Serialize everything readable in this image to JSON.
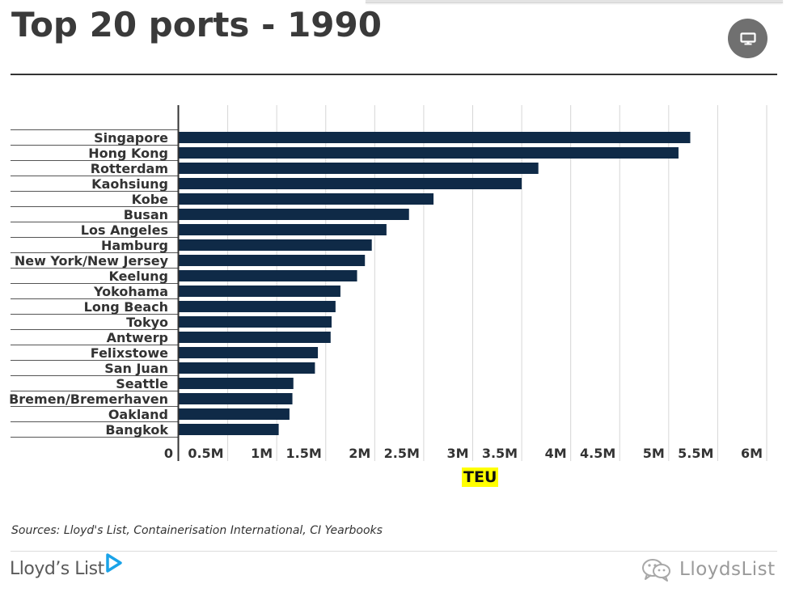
{
  "header": {
    "title": "Top 20 ports - 1990"
  },
  "present_button": {
    "icon": "presentation-icon"
  },
  "chart_data": {
    "type": "bar",
    "orientation": "horizontal",
    "title": "Top 20 ports - 1990",
    "xlabel": "TEU",
    "ylabel": "",
    "xlim": [
      0,
      6000000
    ],
    "grid": true,
    "bar_color": "#0f2a47",
    "x_ticks": [
      0,
      500000,
      1000000,
      1500000,
      2000000,
      2500000,
      3000000,
      3500000,
      4000000,
      4500000,
      5000000,
      5500000,
      6000000
    ],
    "x_tick_labels": [
      "0",
      "0.5M",
      "1M",
      "1.5M",
      "2M",
      "2.5M",
      "3M",
      "3.5M",
      "4M",
      "4.5M",
      "5M",
      "5.5M",
      "6M"
    ],
    "categories": [
      "Singapore",
      "Hong Kong",
      "Rotterdam",
      "Kaohsiung",
      "Kobe",
      "Busan",
      "Los Angeles",
      "Hamburg",
      "New York/New Jersey",
      "Keelung",
      "Yokohama",
      "Long Beach",
      "Tokyo",
      "Antwerp",
      "Felixstowe",
      "San Juan",
      "Seattle",
      "Bremen/Bremerhaven",
      "Oakland",
      "Bangkok"
    ],
    "values": [
      5220000,
      5100000,
      3670000,
      3500000,
      2600000,
      2350000,
      2120000,
      1970000,
      1900000,
      1820000,
      1650000,
      1600000,
      1560000,
      1550000,
      1420000,
      1390000,
      1170000,
      1160000,
      1130000,
      1020000
    ]
  },
  "source_note": "Sources: Lloyd's List, Containerisation International, CI Yearbooks",
  "footer": {
    "brand": "Lloyd’s List",
    "brand_accent": "#1aa3e8",
    "watermark": "LloydsList"
  }
}
